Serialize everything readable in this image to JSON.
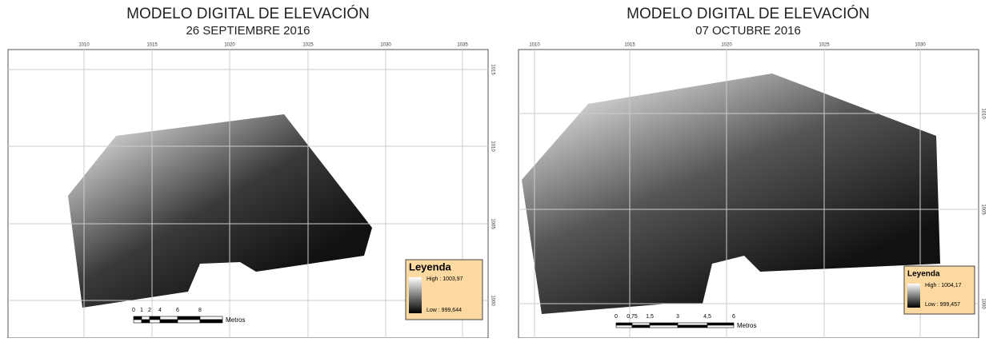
{
  "panels": [
    {
      "title": "MODELO DIGITAL DE ELEVACIÓN",
      "subtitle": "26 SEPTIEMBRE 2016",
      "top_ticks": [
        "1010",
        "1015",
        "1020",
        "1025",
        "1030",
        "1035"
      ],
      "right_ticks": [
        "1015",
        "1010",
        "1005",
        "1000"
      ],
      "legend": {
        "title": "Leyenda",
        "high": "High : 1003,97",
        "low": "Low : 999,644"
      },
      "scale": {
        "labels": [
          "0",
          "1",
          "2",
          "4",
          "6",
          "8"
        ],
        "unit": "Metros"
      }
    },
    {
      "title": "MODELO DIGITAL DE ELEVACIÓN",
      "subtitle": "07 OCTUBRE 2016",
      "top_ticks": [
        "1010",
        "1015",
        "1020",
        "1025",
        "1030"
      ],
      "right_ticks": [
        "1010",
        "1005",
        "1000"
      ],
      "legend": {
        "title": "Leyenda",
        "high": "High : 1004,17",
        "low": "Low : 999,457"
      },
      "scale": {
        "labels": [
          "0",
          "0,75",
          "1,5",
          "3",
          "4,5",
          "6"
        ],
        "unit": "Metros"
      }
    }
  ]
}
